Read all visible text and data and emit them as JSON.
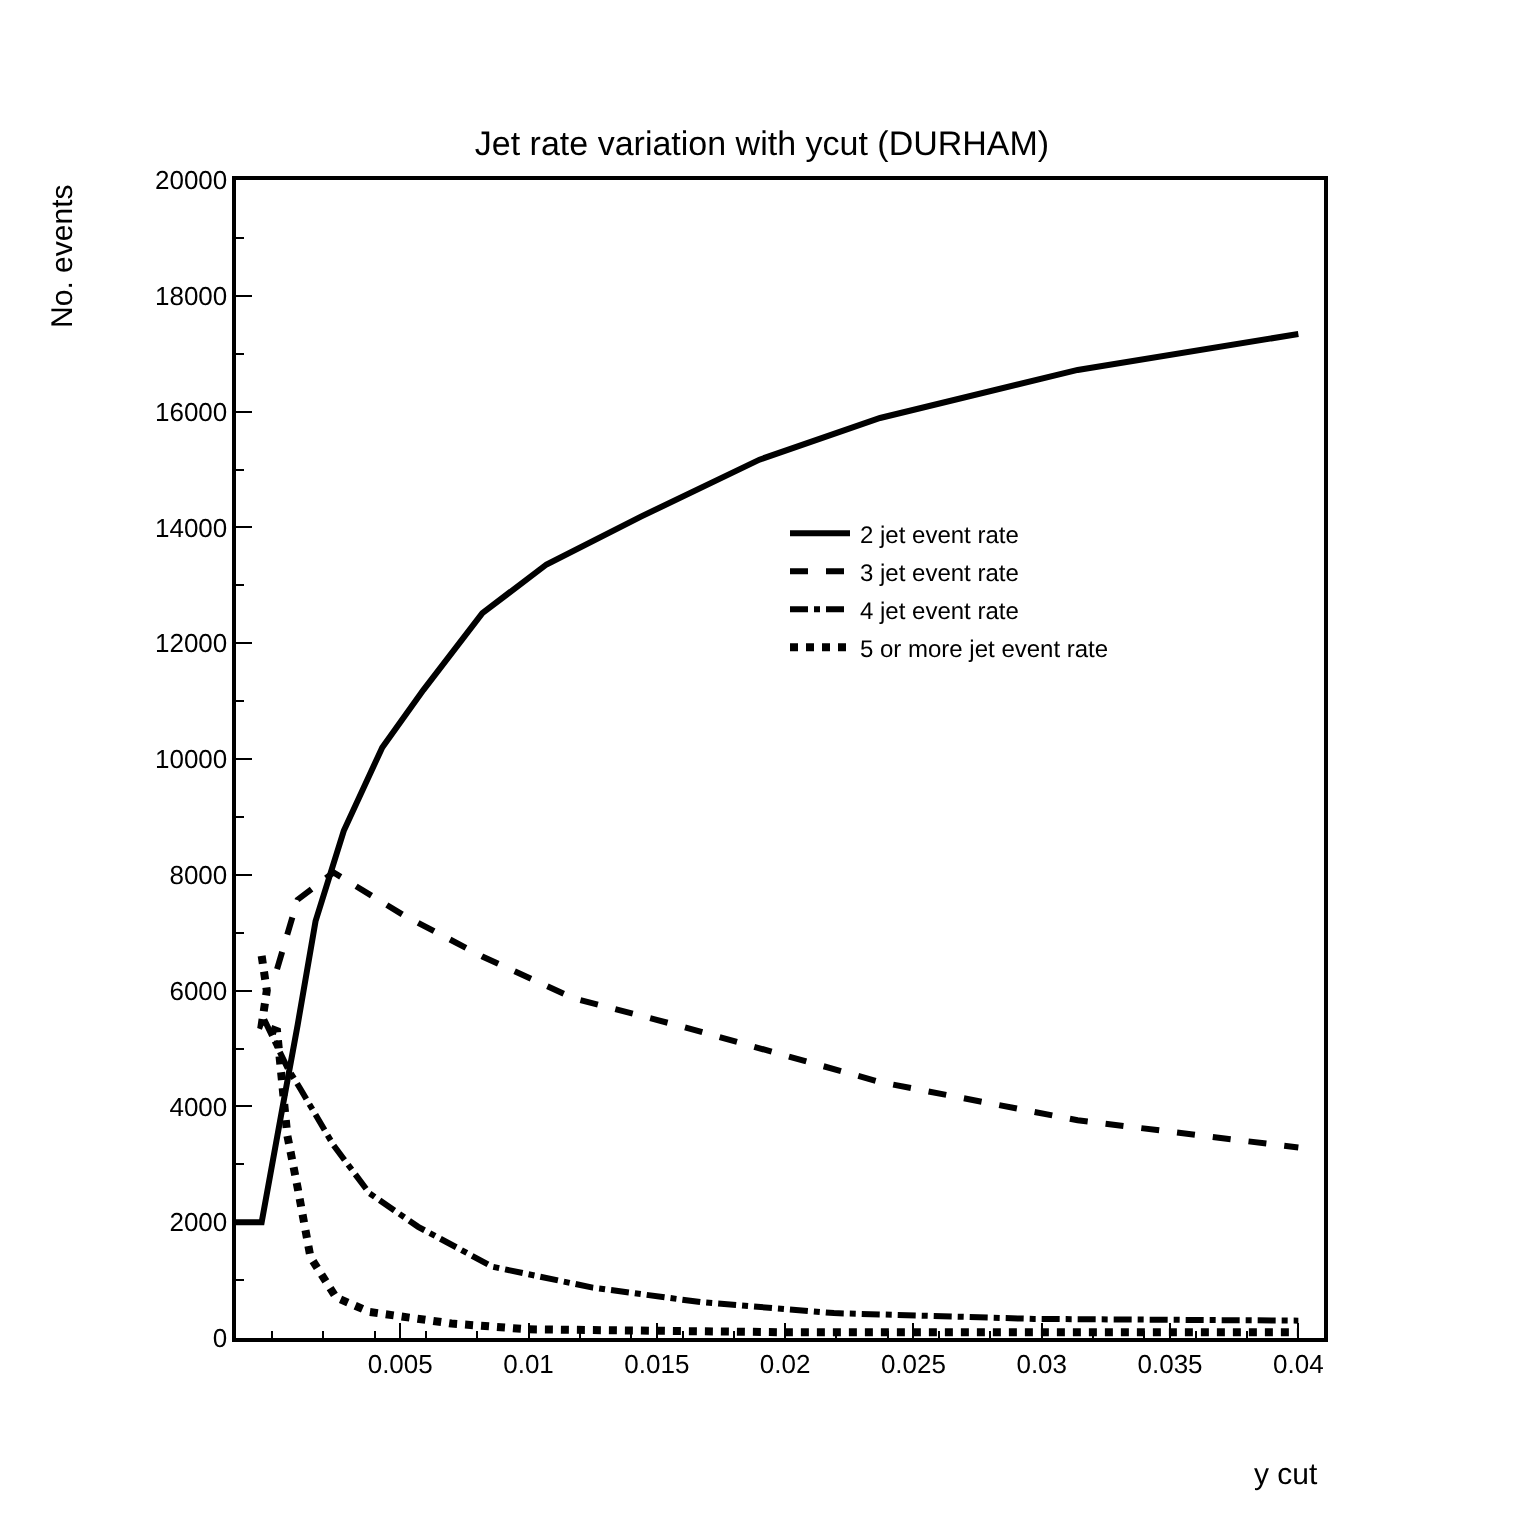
{
  "chart_data": {
    "type": "line",
    "title": "Jet rate variation with ycut (DURHAM)",
    "xlabel": "y cut",
    "ylabel": "No. events",
    "xlim": [
      -0.0014,
      0.041
    ],
    "ylim": [
      0,
      20000
    ],
    "xticks": [
      0.005,
      0.01,
      0.015,
      0.02,
      0.025,
      0.03,
      0.035,
      0.04
    ],
    "yticks": [
      0,
      2000,
      4000,
      6000,
      8000,
      10000,
      12000,
      14000,
      16000,
      18000,
      20000
    ],
    "legend": "right",
    "marker": "none",
    "series": [
      {
        "name": "2 jet event rate",
        "color": "#000000",
        "line_style": "solid",
        "x": [
          -0.0014,
          -0.0004,
          0.0004,
          0.001,
          0.0017,
          0.0028,
          0.0043,
          0.0059,
          0.0082,
          0.0107,
          0.0144,
          0.019,
          0.0237,
          0.0314,
          0.04
        ],
        "values": [
          2000,
          2000,
          3950,
          5400,
          7200,
          8760,
          10200,
          11190,
          12520,
          13360,
          14190,
          15170,
          15890,
          16720,
          17340
        ]
      },
      {
        "name": "3 jet event rate",
        "color": "#000000",
        "line_style": "dashed",
        "x": [
          0.0002,
          0.001,
          0.0024,
          0.0051,
          0.0082,
          0.0118,
          0.0159,
          0.0237,
          0.0314,
          0.04
        ],
        "values": [
          6370,
          7570,
          8040,
          7310,
          6590,
          5860,
          5390,
          4420,
          3760,
          3290
        ]
      },
      {
        "name": "4 jet event rate",
        "color": "#000000",
        "line_style": "dashdot",
        "x": [
          -0.0003,
          0.0006,
          0.0011,
          0.0024,
          0.0038,
          0.0057,
          0.0086,
          0.0125,
          0.0167,
          0.0219,
          0.0297,
          0.04
        ],
        "values": [
          5500,
          4670,
          4310,
          3330,
          2500,
          1920,
          1230,
          870,
          620,
          430,
          330,
          300
        ]
      },
      {
        "name": "5 or more jet event rate",
        "color": "#000000",
        "line_style": "dotted",
        "x": [
          -0.0004,
          -0.0002,
          -0.0004,
          0.0002,
          0.0004,
          0.0006,
          0.001,
          0.0015,
          0.0025,
          0.0038,
          0.007,
          0.01,
          0.02,
          0.03,
          0.04
        ],
        "values": [
          6600,
          6000,
          5400,
          5300,
          4400,
          3500,
          2600,
          1400,
          700,
          450,
          250,
          150,
          100,
          100,
          100
        ]
      }
    ]
  }
}
